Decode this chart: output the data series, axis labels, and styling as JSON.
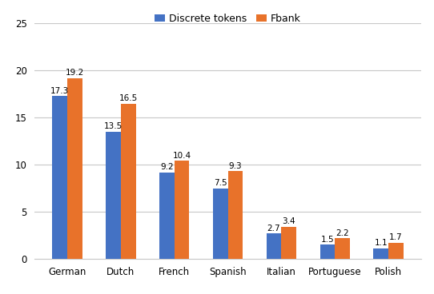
{
  "categories": [
    "German",
    "Dutch",
    "French",
    "Spanish",
    "Italian",
    "Portuguese",
    "Polish"
  ],
  "discrete_tokens": [
    17.3,
    13.5,
    9.2,
    7.5,
    2.7,
    1.5,
    1.1
  ],
  "fbank": [
    19.2,
    16.5,
    10.4,
    9.3,
    3.4,
    2.2,
    1.7
  ],
  "bar_color_discrete": "#4472C4",
  "bar_color_fbank": "#E8722A",
  "legend_labels": [
    "Discrete tokens",
    "Fbank"
  ],
  "ylim": [
    0,
    25
  ],
  "yticks": [
    0,
    5,
    10,
    15,
    20,
    25
  ],
  "background_color": "#ffffff",
  "grid_color": "#c8c8c8",
  "bar_width": 0.28,
  "label_fontsize": 7.5,
  "tick_fontsize": 8.5,
  "legend_fontsize": 9.0,
  "bottom_spine_color": "#c8c8c8"
}
